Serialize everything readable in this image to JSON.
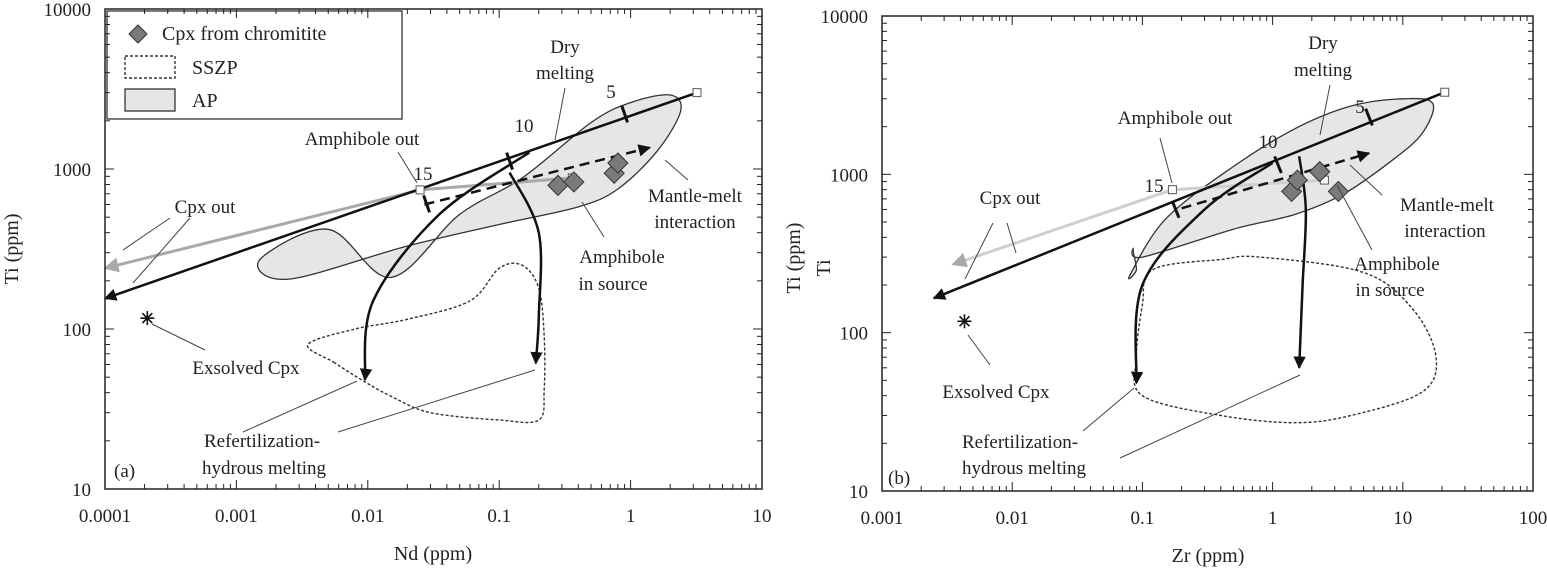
{
  "chart_data": [
    {
      "type": "scatter",
      "panel_label": "(a)",
      "xlabel": "Nd (ppm)",
      "ylabel": "Ti (ppm)",
      "xscale": "log",
      "yscale": "log",
      "xlim": [
        0.0001,
        10
      ],
      "ylim": [
        10,
        10000
      ],
      "xticks": [
        "0.0001",
        "0.001",
        "0.01",
        "0.1",
        "1",
        "10"
      ],
      "yticks": [
        "10",
        "100",
        "1000",
        "10000"
      ],
      "legend": {
        "placement": "top-left",
        "entries": [
          "Cpx from chromitite",
          "SSZP",
          "AP"
        ]
      },
      "points": [
        {
          "x": 0.28,
          "y": 790
        },
        {
          "x": 0.37,
          "y": 830
        },
        {
          "x": 0.75,
          "y": 940
        },
        {
          "x": 0.8,
          "y": 1090
        }
      ],
      "exsolved_cpx": {
        "x": 0.00021,
        "y": 117
      },
      "annotations": {
        "dry_melting": [
          "Dry",
          "melting"
        ],
        "amphibole_out": "Amphibole out",
        "cpx_out": "Cpx out",
        "mantle_melt": [
          "Mantle-melt",
          "interaction"
        ],
        "amph_source": [
          "Amphibole",
          "in source"
        ],
        "exsolved": "Exsolved Cpx",
        "refert": [
          "Refertilization-",
          "hydrous melting"
        ],
        "n5": "5",
        "n10": "10",
        "n15": "15"
      },
      "model_lines": {
        "black_line": [
          [
            3.2,
            3000
          ],
          [
            0.0001,
            155
          ]
        ],
        "grey_line": [
          [
            0.36,
            880
          ],
          [
            0.025,
            740
          ],
          [
            0.0001,
            240
          ]
        ],
        "dashed_line": [
          [
            0.027,
            600
          ],
          [
            1.4,
            1360
          ]
        ],
        "start_box": {
          "x": 3.2,
          "y": 3000
        },
        "amph_out_box": {
          "x": 0.025,
          "y": 740
        },
        "amph_src_box": {
          "x": 0.36,
          "y": 880
        },
        "curve_left": [
          [
            0.17,
            1270
          ],
          [
            0.035,
            520
          ],
          [
            0.011,
            150
          ],
          [
            0.0095,
            48
          ]
        ],
        "curve_right": [
          [
            0.12,
            950
          ],
          [
            0.2,
            400
          ],
          [
            0.2,
            120
          ],
          [
            0.19,
            61
          ]
        ],
        "tick_marks": {
          "5": [
            0.9,
            2210
          ],
          "10": [
            0.12,
            1120
          ],
          "15": [
            0.028,
            605
          ]
        }
      },
      "ap_field": [
        [
          0.015,
          210
        ],
        [
          0.05,
          520
        ],
        [
          0.15,
          880
        ],
        [
          0.5,
          1950
        ],
        [
          1.0,
          2600
        ],
        [
          2.0,
          2900
        ],
        [
          2.4,
          2300
        ],
        [
          1.6,
          1300
        ],
        [
          0.8,
          750
        ],
        [
          0.4,
          580
        ],
        [
          0.1,
          450
        ],
        [
          0.02,
          330
        ],
        [
          0.0025,
          205
        ],
        [
          0.0015,
          270
        ],
        [
          0.005,
          420
        ]
      ],
      "sszp_field": [
        [
          0.0055,
          62
        ],
        [
          0.009,
          48
        ],
        [
          0.015,
          38
        ],
        [
          0.03,
          30
        ],
        [
          0.1,
          27
        ],
        [
          0.2,
          27
        ],
        [
          0.22,
          42
        ],
        [
          0.22,
          90
        ],
        [
          0.2,
          180
        ],
        [
          0.15,
          250
        ],
        [
          0.1,
          240
        ],
        [
          0.06,
          150
        ],
        [
          0.02,
          115
        ],
        [
          0.008,
          100
        ],
        [
          0.0035,
          80
        ]
      ]
    },
    {
      "type": "scatter",
      "panel_label": "(b)",
      "xlabel": "Zr (ppm)",
      "ylabel": "Ti (ppm)",
      "ylabel_extra": "Ti",
      "xscale": "log",
      "yscale": "log",
      "xlim": [
        0.001,
        100
      ],
      "ylim": [
        10,
        10000
      ],
      "xticks": [
        "0.001",
        "0.01",
        "0.1",
        "1",
        "10",
        "100"
      ],
      "yticks": [
        "10",
        "100",
        "1000",
        "10000"
      ],
      "points": [
        {
          "x": 1.4,
          "y": 780
        },
        {
          "x": 1.55,
          "y": 920
        },
        {
          "x": 2.3,
          "y": 1040
        },
        {
          "x": 3.2,
          "y": 780
        }
      ],
      "exsolved_cpx": {
        "x": 0.0043,
        "y": 118
      },
      "annotations": {
        "dry_melting": [
          "Dry",
          "melting"
        ],
        "amphibole_out": "Amphibole out",
        "cpx_out": "Cpx out",
        "mantle_melt": [
          "Mantle-melt",
          "interaction"
        ],
        "amph_source": [
          "Amphibole",
          "in source"
        ],
        "exsolved": "Exsolved Cpx",
        "refert": [
          "Refertilization-",
          "hydrous melting"
        ],
        "n5": "5",
        "n10": "10",
        "n15": "15"
      },
      "model_lines": {
        "black_line": [
          [
            21,
            3300
          ],
          [
            0.0025,
            165
          ]
        ],
        "grey_line": [
          [
            2.5,
            920
          ],
          [
            0.17,
            800
          ],
          [
            0.0035,
            270
          ]
        ],
        "dashed_line": [
          [
            0.2,
            610
          ],
          [
            5.5,
            1360
          ]
        ],
        "start_box": {
          "x": 21,
          "y": 3300
        },
        "amph_out_box": {
          "x": 0.17,
          "y": 800
        },
        "amph_src_box": {
          "x": 2.5,
          "y": 920
        },
        "curve_left": [
          [
            1.0,
            1180
          ],
          [
            0.3,
            600
          ],
          [
            0.1,
            200
          ],
          [
            0.09,
            48
          ]
        ],
        "curve_right": [
          [
            1.6,
            1300
          ],
          [
            1.8,
            600
          ],
          [
            1.7,
            200
          ],
          [
            1.6,
            60
          ]
        ],
        "tick_marks": {
          "5": [
            5.5,
            2300
          ],
          "10": [
            1.1,
            1150
          ],
          "15": [
            0.18,
            600
          ]
        }
      },
      "ap_field": [
        [
          0.08,
          230
        ],
        [
          0.15,
          520
        ],
        [
          0.5,
          1120
        ],
        [
          1.5,
          1950
        ],
        [
          4,
          2700
        ],
        [
          10,
          3000
        ],
        [
          17,
          2800
        ],
        [
          14,
          1800
        ],
        [
          8,
          1200
        ],
        [
          3.5,
          750
        ],
        [
          1.5,
          560
        ],
        [
          0.5,
          450
        ],
        [
          0.1,
          300
        ],
        [
          0.085,
          340
        ],
        [
          0.09,
          250
        ]
      ],
      "sszp_field": [
        [
          0.12,
          250
        ],
        [
          0.4,
          290
        ],
        [
          0.8,
          300
        ],
        [
          5,
          240
        ],
        [
          12,
          140
        ],
        [
          18,
          70
        ],
        [
          14,
          42
        ],
        [
          4,
          30
        ],
        [
          1.5,
          27
        ],
        [
          0.4,
          30
        ],
        [
          0.1,
          40
        ],
        [
          0.09,
          70
        ],
        [
          0.1,
          150
        ]
      ]
    }
  ]
}
